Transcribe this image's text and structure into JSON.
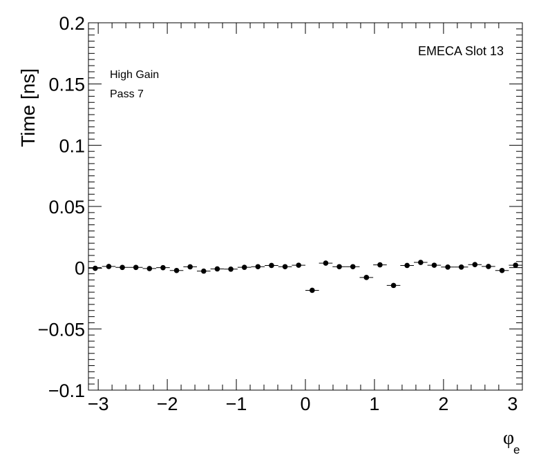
{
  "chart_data": {
    "type": "scatter",
    "title": "",
    "xlabel_main": "φ",
    "xlabel_sub": "e",
    "ylabel": "Time [ns]",
    "xlim": [
      -3.1416,
      3.1416
    ],
    "ylim": [
      -0.1,
      0.2
    ],
    "x_ticks": [
      {
        "value": -3,
        "label": "−3"
      },
      {
        "value": -2,
        "label": "−2"
      },
      {
        "value": -1,
        "label": "−1"
      },
      {
        "value": 0,
        "label": "0"
      },
      {
        "value": 1,
        "label": "1"
      },
      {
        "value": 2,
        "label": "2"
      },
      {
        "value": 3,
        "label": "3"
      }
    ],
    "y_ticks": [
      {
        "value": -0.1,
        "label": "−0.1"
      },
      {
        "value": -0.05,
        "label": "−0.05"
      },
      {
        "value": 0,
        "label": "0"
      },
      {
        "value": 0.05,
        "label": "0.05"
      },
      {
        "value": 0.1,
        "label": "0.1"
      },
      {
        "value": 0.15,
        "label": "0.15"
      },
      {
        "value": 0.2,
        "label": "0.2"
      }
    ],
    "annotations": {
      "top_right": "EMECA Slot 13",
      "line1": "High Gain",
      "line2": "Pass 7"
    },
    "grid": false,
    "bin_width": 0.19635,
    "series": [
      {
        "x": [
          -3.0434,
          -2.8471,
          -2.6507,
          -2.4544,
          -2.258,
          -2.0617,
          -1.8653,
          -1.669,
          -1.4726,
          -1.2763,
          -1.0799,
          -0.8836,
          -0.6872,
          -0.4909,
          -0.2945,
          -0.0982,
          0.0982,
          0.2945,
          0.4909,
          0.6872,
          0.8836,
          1.0799,
          1.2763,
          1.4726,
          1.669,
          1.8653,
          2.0617,
          2.258,
          2.4544,
          2.6507,
          2.8471,
          3.0434
        ],
        "values": [
          -0.0005,
          0.001,
          0.0002,
          0.0002,
          -0.0007,
          0.0,
          -0.0023,
          0.0007,
          -0.0028,
          -0.001,
          -0.0012,
          0.0003,
          0.0008,
          0.0018,
          0.0008,
          0.002,
          -0.0185,
          0.0037,
          0.0008,
          0.0008,
          -0.008,
          0.0023,
          -0.0145,
          0.0018,
          0.0043,
          0.002,
          0.0005,
          0.0005,
          0.0025,
          0.001,
          -0.0023,
          0.002
        ]
      }
    ]
  }
}
